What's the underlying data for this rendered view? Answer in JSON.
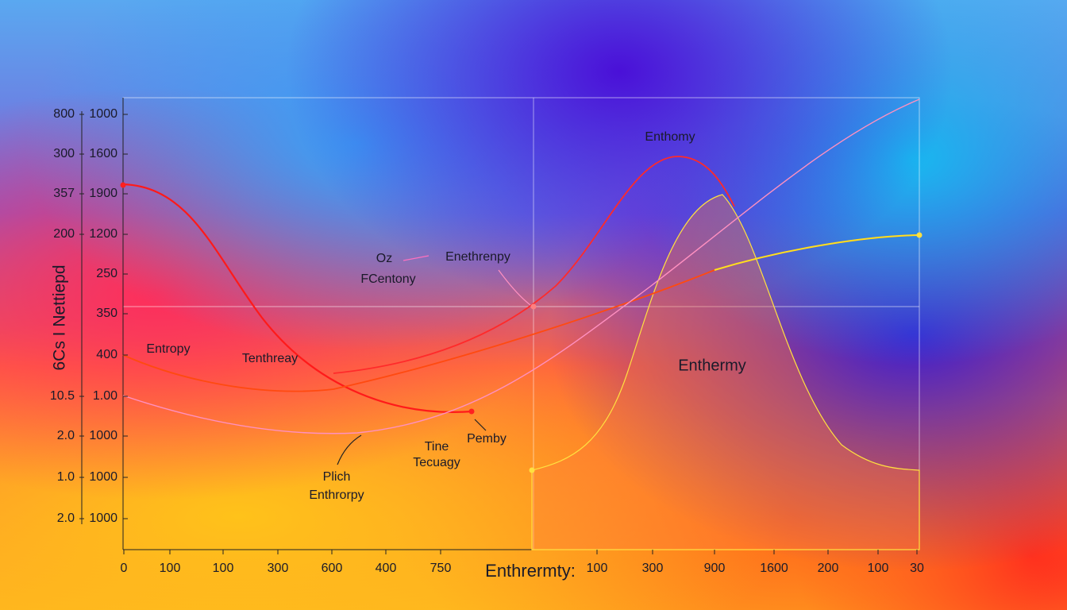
{
  "y_axis_title": "6Cs I Nettiepd",
  "x_axis_title": "Enthrermty:",
  "left_outer_labels": [
    "800",
    "300",
    "357",
    "200",
    "10.5",
    "2.0",
    "1.0",
    "2.0"
  ],
  "left_inner_labels": [
    "1000",
    "1600",
    "1900",
    "1200",
    "250",
    "350",
    "400",
    "1.00",
    "1000",
    "1000",
    "1000"
  ],
  "bottom_labels": [
    "0",
    "100",
    "100",
    "300",
    "600",
    "400",
    "750",
    "100",
    "300",
    "900",
    "1600",
    "200",
    "100",
    "30"
  ],
  "annotations": [
    "Enthomy",
    "Oz",
    "Enethrenpy",
    "FCentony",
    "Entropy",
    "Tenthreay",
    "Enthermy",
    "Pemby",
    "Tine",
    "Tecuagy",
    "Plich",
    "Enthrorpy"
  ]
}
